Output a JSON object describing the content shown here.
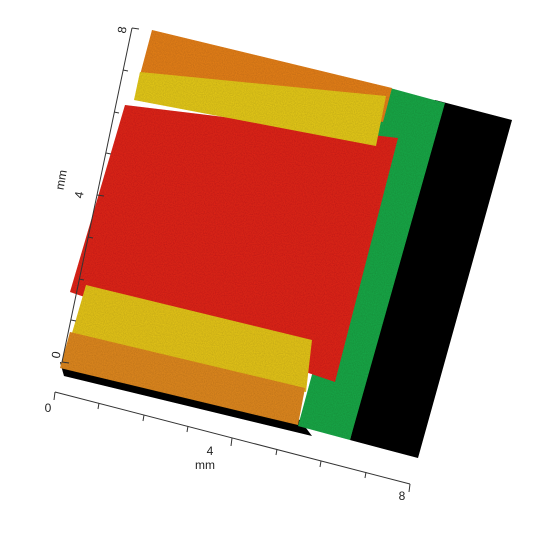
{
  "y_axis": {
    "label": "mm",
    "ticks": [
      "0",
      "4",
      "8"
    ]
  },
  "x_axis": {
    "label": "mm",
    "ticks": [
      "0",
      "4",
      "8"
    ]
  }
}
